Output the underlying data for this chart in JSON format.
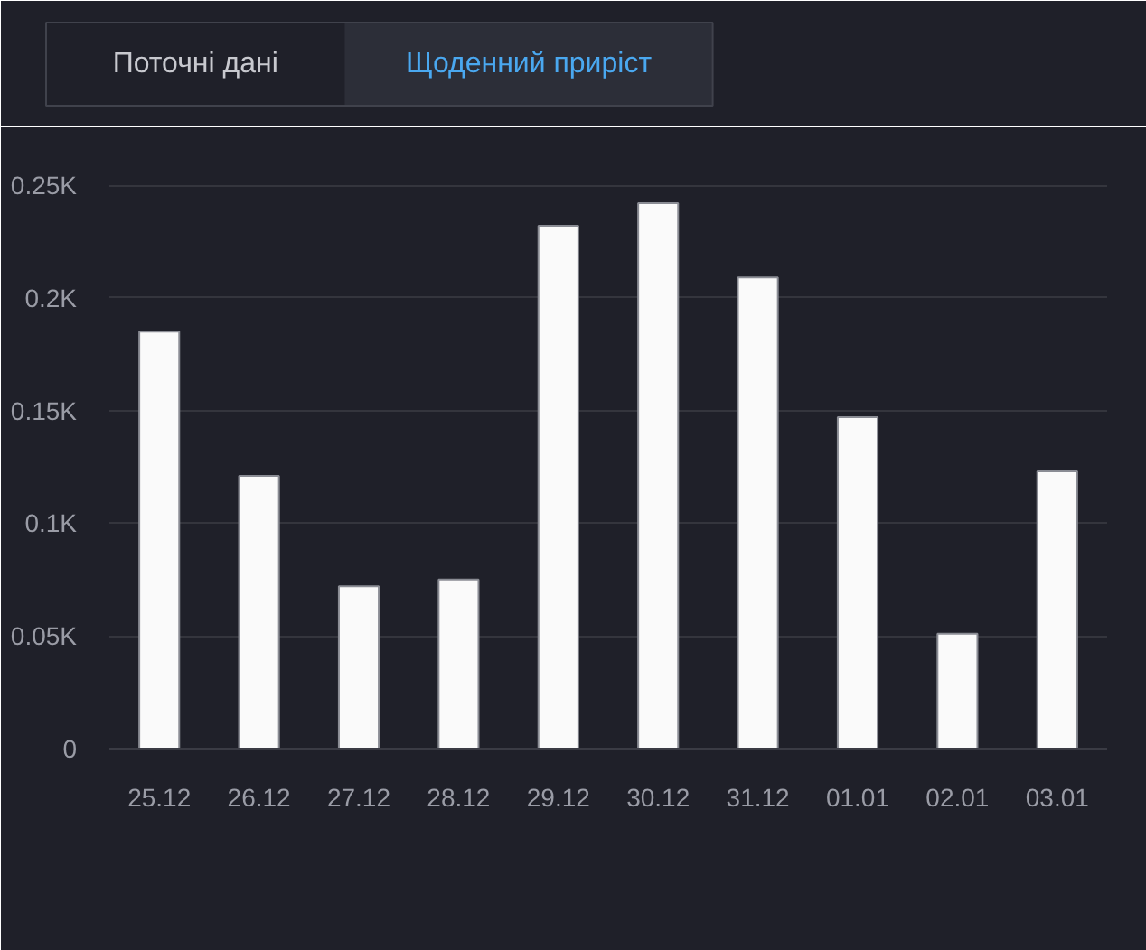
{
  "chart_data": {
    "type": "bar",
    "annotations": [
      "Поточні дані",
      "Щоденний приріст"
    ],
    "categories": [
      "25.12",
      "26.12",
      "27.12",
      "28.12",
      "29.12",
      "30.12",
      "31.12",
      "01.01",
      "02.01",
      "03.01"
    ],
    "values": [
      185,
      121,
      72,
      75,
      232,
      242,
      209,
      147,
      51,
      123
    ],
    "color": "#fafafa",
    "ylim": [
      0,
      250
    ],
    "yticks": [
      0,
      {
        "value": 50,
        "label": "0.05K"
      },
      {
        "value": 100,
        "label": "0.1K"
      },
      {
        "value": 150,
        "label": "0.15K"
      },
      {
        "value": 200,
        "label": "0.2K"
      },
      {
        "value": 250,
        "label": "0.25K"
      }
    ],
    "grid": "y"
  }
}
